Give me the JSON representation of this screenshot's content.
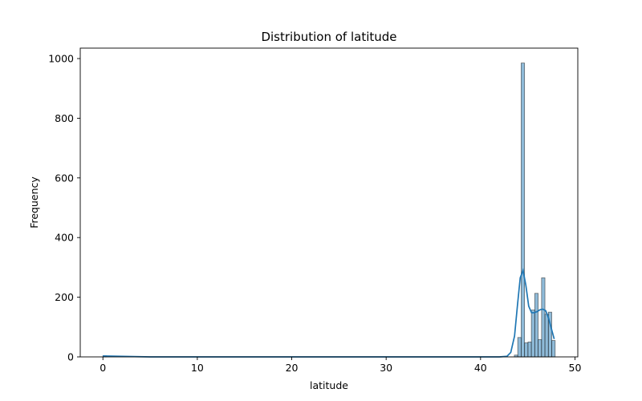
{
  "chart_data": {
    "type": "bar",
    "title": "Distribution of latitude",
    "xlabel": "latitude",
    "ylabel": "Frequency",
    "xlim": [
      -2.4,
      50.3
    ],
    "ylim": [
      0,
      1035
    ],
    "xticks": [
      0,
      10,
      20,
      30,
      40,
      50
    ],
    "yticks": [
      0,
      200,
      400,
      600,
      800,
      1000
    ],
    "grid": false,
    "bar_color": "#1f77b4",
    "kde_color": "#1f77b4",
    "bin_width": 0.36,
    "bins": [
      {
        "x": 0.0,
        "count": 4
      },
      {
        "x": 43.58,
        "count": 6
      },
      {
        "x": 43.94,
        "count": 65
      },
      {
        "x": 44.3,
        "count": 985
      },
      {
        "x": 44.66,
        "count": 47
      },
      {
        "x": 45.02,
        "count": 50
      },
      {
        "x": 45.38,
        "count": 157
      },
      {
        "x": 45.74,
        "count": 213
      },
      {
        "x": 46.1,
        "count": 58
      },
      {
        "x": 46.46,
        "count": 265
      },
      {
        "x": 46.82,
        "count": 143
      },
      {
        "x": 47.18,
        "count": 150
      },
      {
        "x": 47.54,
        "count": 55
      }
    ],
    "kde": {
      "x": [
        0,
        5,
        10,
        20,
        30,
        40,
        42.0,
        42.8,
        43.2,
        43.6,
        43.9,
        44.2,
        44.5,
        44.8,
        45.1,
        45.4,
        45.7,
        46.0,
        46.3,
        46.6,
        46.9,
        47.2,
        47.5,
        47.8
      ],
      "y": [
        3,
        0,
        0,
        0,
        0,
        0,
        0,
        2,
        15,
        70,
        170,
        265,
        290,
        240,
        170,
        148,
        148,
        152,
        158,
        160,
        155,
        130,
        95,
        60
      ]
    }
  }
}
